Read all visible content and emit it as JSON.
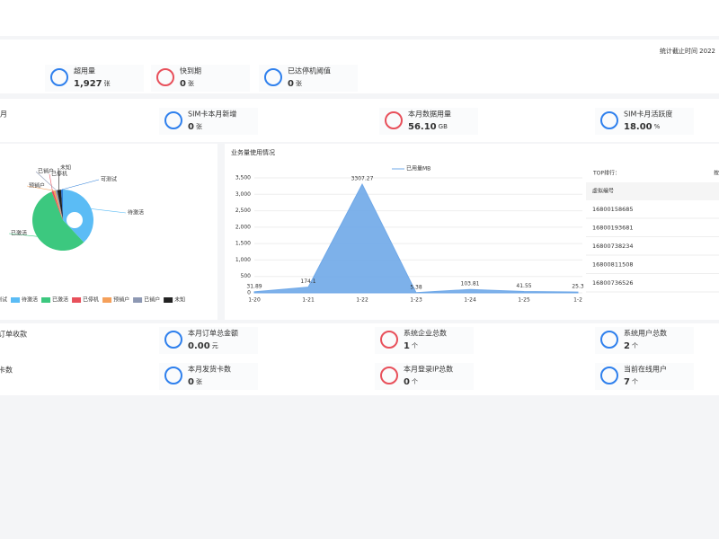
{
  "header": {
    "stat_time": "统计截止时间 2022"
  },
  "row1": [
    {
      "label": "超用量",
      "value": "1,927",
      "unit": "张"
    },
    {
      "label": "快到期",
      "value": "0",
      "unit": "张"
    },
    {
      "label": "已达停机阈值",
      "value": "0",
      "unit": "张"
    }
  ],
  "row2_left": "月",
  "row2": [
    {
      "label": "SIM卡本月新增",
      "value": "0",
      "unit": "张"
    },
    {
      "label": "本月数据用量",
      "value": "56.10",
      "unit": "GB"
    },
    {
      "label": "SIM卡月活跃度",
      "value": "18.00",
      "unit": "%"
    }
  ],
  "pie": {
    "type": "pie",
    "categories": [
      "可测试",
      "待激活",
      "已激活",
      "已停机",
      "预销户",
      "已销户",
      "未知"
    ],
    "values": [
      1,
      38,
      56,
      1,
      1,
      1,
      2
    ],
    "colors": [
      "#2f7fd8",
      "#5bbcf5",
      "#3cc87f",
      "#e8505b",
      "#f5a05a",
      "#8d98b3",
      "#222222"
    ]
  },
  "usage_chart": {
    "type": "line",
    "title": "业务量使用情况",
    "series": [
      {
        "name": "已用量MB",
        "color": "#6fa8e8",
        "values": [
          31.89,
          174.1,
          3307.27,
          5.38,
          103.81,
          41.55,
          25.3
        ]
      }
    ],
    "categories": [
      "1-20",
      "1-21",
      "1-22",
      "1-23",
      "1-24",
      "1-25",
      "1-2"
    ],
    "ylim": [
      0,
      3500
    ],
    "yticks": [
      0,
      {
        "value": 500,
        "label": "500"
      },
      {
        "value": 1000,
        "label": "1,000"
      },
      {
        "value": 1500,
        "label": "1,500"
      },
      {
        "value": 2000,
        "label": "2,000"
      },
      {
        "value": 2500,
        "label": "2,500"
      },
      {
        "value": 3000,
        "label": "3,000"
      },
      {
        "value": 3500,
        "label": "3,500"
      }
    ]
  },
  "top": {
    "title": "TOP排行：",
    "link": "按",
    "header": "虚拟编号",
    "items": [
      "16800158685",
      "16800193681",
      "16800738234",
      "16800811508",
      "16800736526"
    ]
  },
  "row3_left": "订单收款",
  "row3": [
    {
      "label": "本月订单总金额",
      "value": "0.00",
      "unit": "元"
    },
    {
      "label": "系统企业总数",
      "value": "1",
      "unit": "个"
    },
    {
      "label": "系统用户总数",
      "value": "2",
      "unit": "个"
    }
  ],
  "row4_left": "卡数",
  "row4": [
    {
      "label": "本月发货卡数",
      "value": "0",
      "unit": "张"
    },
    {
      "label": "本月登录IP总数",
      "value": "0",
      "unit": "个"
    },
    {
      "label": "当前在线用户",
      "value": "7",
      "unit": "个"
    }
  ]
}
